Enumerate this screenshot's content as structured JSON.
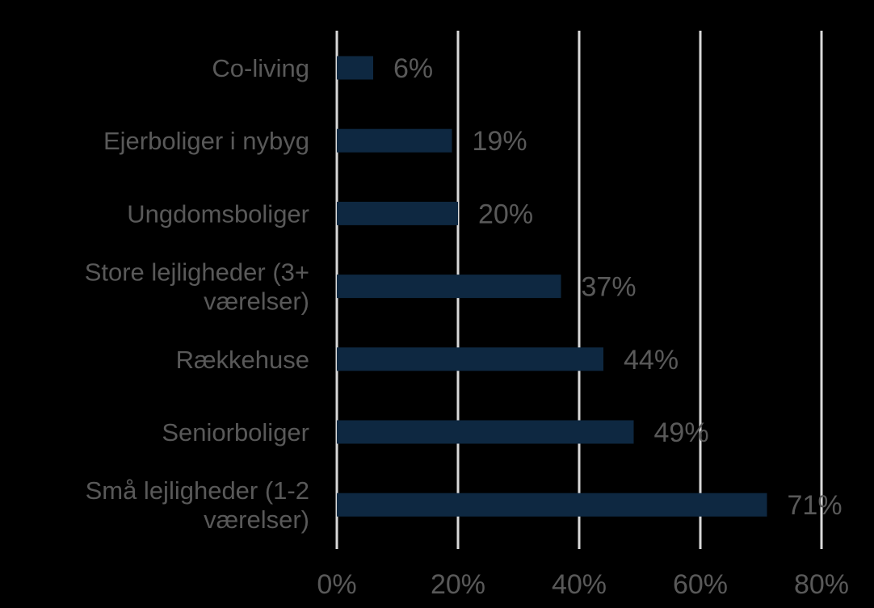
{
  "chart_data": {
    "type": "bar",
    "orientation": "horizontal",
    "categories": [
      [
        "Co-living"
      ],
      [
        "Ejerboliger i nybyg"
      ],
      [
        "Ungdomsboliger"
      ],
      [
        "Store lejligheder (3+",
        "værelser)"
      ],
      [
        "Rækkehuse"
      ],
      [
        "Seniorboliger"
      ],
      [
        "Små lejligheder (1-2",
        "værelser)"
      ]
    ],
    "values": [
      6,
      19,
      20,
      37,
      44,
      49,
      71
    ],
    "value_labels": [
      "6%",
      "19%",
      "20%",
      "37%",
      "44%",
      "49%",
      "71%"
    ],
    "xlim": [
      0,
      80
    ],
    "xticks": [
      0,
      20,
      40,
      60,
      80
    ],
    "xtick_labels": [
      "0%",
      "20%",
      "40%",
      "60%",
      "80%"
    ],
    "grid": "vertical",
    "legend": "none",
    "colors": {
      "background": "#000000",
      "bar": "#0e2841",
      "text": "#595959",
      "grid": "#d9d9d9"
    }
  }
}
